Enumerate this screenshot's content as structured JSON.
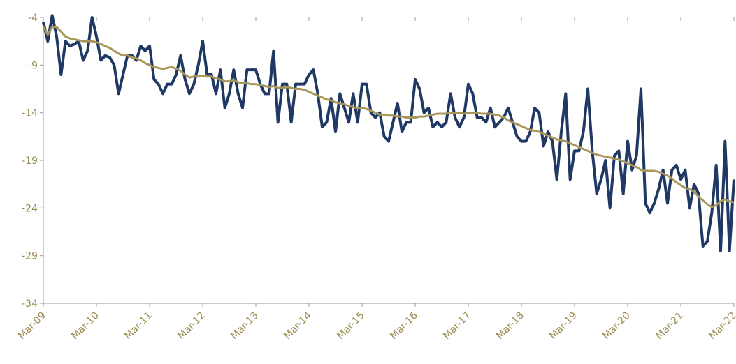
{
  "chart_data": {
    "type": "line",
    "categories": [
      "Mar-09",
      null,
      null,
      null,
      null,
      null,
      null,
      null,
      null,
      null,
      null,
      null,
      "Mar-10",
      null,
      null,
      null,
      null,
      null,
      null,
      null,
      null,
      null,
      null,
      null,
      "Mar-11",
      null,
      null,
      null,
      null,
      null,
      null,
      null,
      null,
      null,
      null,
      null,
      "Mar-12",
      null,
      null,
      null,
      null,
      null,
      null,
      null,
      null,
      null,
      null,
      null,
      "Mar-13",
      null,
      null,
      null,
      null,
      null,
      null,
      null,
      null,
      null,
      null,
      null,
      "Mar-14",
      null,
      null,
      null,
      null,
      null,
      null,
      null,
      null,
      null,
      null,
      null,
      "Mar-15",
      null,
      null,
      null,
      null,
      null,
      null,
      null,
      null,
      null,
      null,
      null,
      "Mar-16",
      null,
      null,
      null,
      null,
      null,
      null,
      null,
      null,
      null,
      null,
      null,
      "Mar-17",
      null,
      null,
      null,
      null,
      null,
      null,
      null,
      null,
      null,
      null,
      null,
      "Mar-18",
      null,
      null,
      null,
      null,
      null,
      null,
      null,
      null,
      null,
      null,
      null,
      "Mar-19",
      null,
      null,
      null,
      null,
      null,
      null,
      null,
      null,
      null,
      null,
      null,
      "Mar-20",
      null,
      null,
      null,
      null,
      null,
      null,
      null,
      null,
      null,
      null,
      null,
      "Mar-21",
      null,
      null,
      null,
      null,
      null,
      null,
      null,
      null,
      null,
      null,
      null,
      "Mar-22"
    ],
    "series": [
      {
        "color": "#1f3864",
        "width": 4,
        "values": [
          -4.5,
          -6.5,
          -3.8,
          -6,
          -10,
          -6.5,
          -7,
          -6.8,
          -6.5,
          -8.5,
          -7.5,
          -4,
          -6,
          -8.5,
          -8,
          -8.2,
          -9,
          -12,
          -10,
          -8,
          -8,
          -8.5,
          -7,
          -7.5,
          -7,
          -10.5,
          -11,
          -12,
          -11,
          -11,
          -10,
          -8,
          -10.5,
          -12,
          -11,
          -9,
          -6.5,
          -10,
          -10,
          -12,
          -9.5,
          -13.5,
          -12,
          -9.5,
          -12,
          -13.5,
          -9.5,
          -9.5,
          -9.5,
          -11,
          -12,
          -12,
          -7.5,
          -15,
          -11,
          -11,
          -15,
          -11,
          -11,
          -11,
          -10,
          -9.5,
          -12,
          -15.5,
          -15,
          -12.5,
          -16,
          -12,
          -13.5,
          -15,
          -12,
          -15,
          -11,
          -11,
          -14,
          -14.5,
          -14,
          -16.5,
          -17,
          -15,
          -13,
          -16,
          -15,
          -15,
          -10.5,
          -11.5,
          -14,
          -13.5,
          -15.5,
          -15,
          -15.5,
          -15,
          -12,
          -14.5,
          -15.5,
          -14.5,
          -11,
          -12,
          -14.5,
          -14.5,
          -15,
          -13.5,
          -15.5,
          -15,
          -14.5,
          -13.5,
          -15,
          -16.5,
          -17,
          -17,
          -16,
          -13.5,
          -14,
          -17.5,
          -16,
          -17,
          -21,
          -16,
          -12,
          -21,
          -18,
          -18,
          -16,
          -11.5,
          -18,
          -22.5,
          -21,
          -19,
          -24,
          -18.5,
          -18,
          -22.5,
          -17,
          -20,
          -18.5,
          -11.5,
          -23.5,
          -24.5,
          -23.5,
          -22,
          -20,
          -23.5,
          -20,
          -19.5,
          -21,
          -20,
          -24,
          -21.5,
          -22.5,
          -28,
          -27.5,
          -24.5,
          -19.5,
          -28.5,
          -17,
          -28.5,
          -21
        ]
      },
      {
        "color": "#a8975a",
        "width": 3,
        "values": [
          -5,
          -5.8,
          -5,
          -5,
          -5.5,
          -6,
          -6.2,
          -6.3,
          -6.4,
          -6.5,
          -6.5,
          -6.5,
          -6.6,
          -6.8,
          -7,
          -7.2,
          -7.5,
          -7.8,
          -8,
          -8,
          -8.2,
          -8.3,
          -8.5,
          -8.8,
          -9,
          -9.2,
          -9.3,
          -9.4,
          -9.3,
          -9.2,
          -9.4,
          -9.6,
          -10,
          -10.3,
          -10.2,
          -10.2,
          -10.1,
          -10.2,
          -10.2,
          -10.4,
          -10.5,
          -10.7,
          -10.7,
          -10.6,
          -10.8,
          -10.9,
          -10.9,
          -11,
          -11,
          -11.1,
          -11.2,
          -11.3,
          -11.2,
          -11.4,
          -11.4,
          -11.3,
          -11.4,
          -11.5,
          -11.5,
          -11.6,
          -11.8,
          -12,
          -12.2,
          -12.4,
          -12.6,
          -12.7,
          -12.9,
          -13,
          -13.1,
          -13.3,
          -13.4,
          -13.5,
          -13.5,
          -13.6,
          -13.8,
          -14,
          -14.2,
          -14.2,
          -14.3,
          -14.3,
          -14.4,
          -14.4,
          -14.5,
          -14.5,
          -14.5,
          -14.4,
          -14.4,
          -14.3,
          -14.2,
          -14.1,
          -14.1,
          -14.1,
          -14,
          -14,
          -14,
          -14.1,
          -14,
          -14,
          -14,
          -14.1,
          -14.1,
          -14.1,
          -14.2,
          -14.3,
          -14.5,
          -14.8,
          -15,
          -15.2,
          -15.4,
          -15.6,
          -15.8,
          -15.9,
          -16,
          -16.2,
          -16.4,
          -16.6,
          -16.8,
          -16.9,
          -17,
          -17.2,
          -17.4,
          -17.6,
          -17.8,
          -18,
          -18.2,
          -18.4,
          -18.5,
          -18.6,
          -18.7,
          -18.8,
          -18.9,
          -19.1,
          -19.3,
          -19.5,
          -19.7,
          -20,
          -20.1,
          -20.1,
          -20.1,
          -20.2,
          -20.4,
          -20.6,
          -20.9,
          -21.3,
          -21.6,
          -21.9,
          -22,
          -22.3,
          -22.8,
          -23.2,
          -23.6,
          -23.9,
          -23.7,
          -23.3,
          -23.1,
          -23.3,
          -23.4
        ]
      }
    ],
    "ylim": [
      -34,
      -4
    ],
    "yticks": [
      -34,
      -29,
      -24,
      -19,
      -14,
      -9,
      -4
    ]
  }
}
